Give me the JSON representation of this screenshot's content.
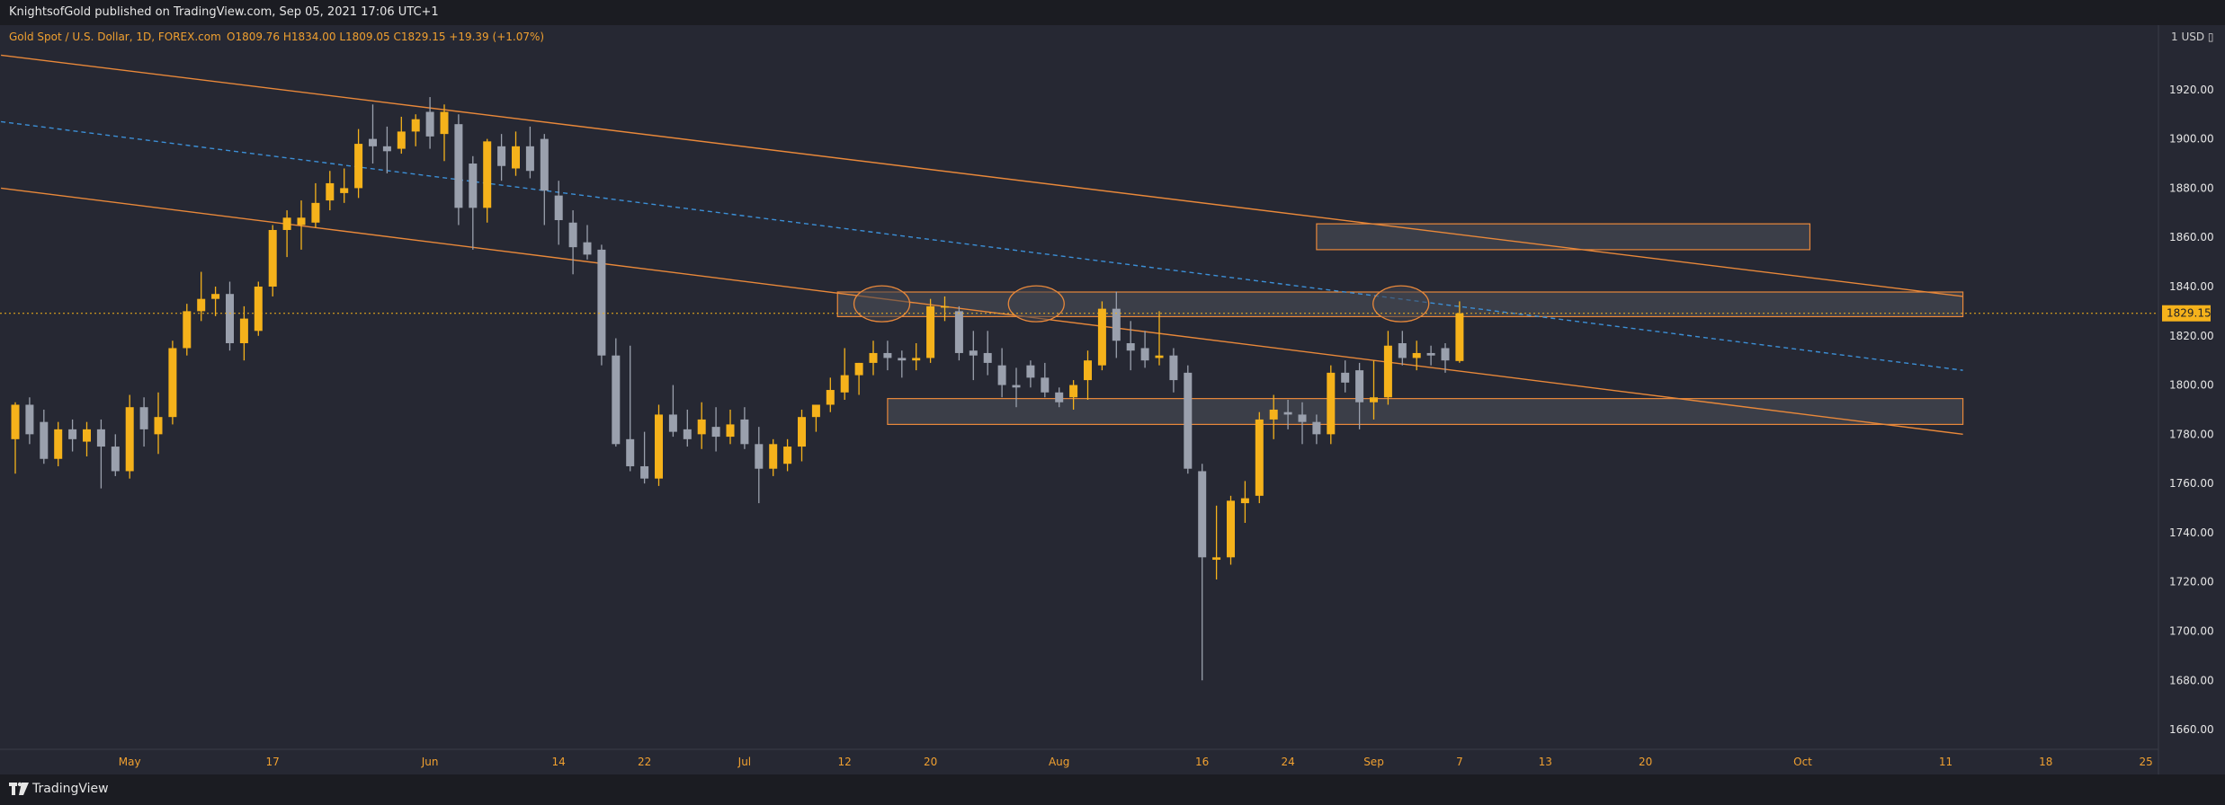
{
  "header": {
    "published_line": "KnightsofGold published on TradingView.com, Sep 05, 2021 17:06 UTC+1"
  },
  "footer": {
    "brand": "TradingView"
  },
  "colors": {
    "background": "#262833",
    "up_candle": "#f5b21b",
    "down_candle": "#9aa0ad",
    "channel_line": "#e8883a",
    "midline": "#3c8fd6",
    "zone_fill": "#3f424c",
    "zone_border": "#e8883a",
    "axis_text": "#f0a030"
  },
  "chart_data": {
    "type": "candlestick",
    "symbol_legend": "Gold Spot / U.S. Dollar, 1D, FOREX.com",
    "ohlc_legend": "O1809.76 H1834.00 L1809.05 C1829.15 +19.39 (+1.07%)",
    "currency_label": "1 USD ▯",
    "last_price_label": "1829.15",
    "last_price": 1829.15,
    "ylim": [
      1652,
      1936
    ],
    "y_ticks": [
      1660,
      1680,
      1700,
      1720,
      1740,
      1760,
      1780,
      1800,
      1820,
      1840,
      1860,
      1880,
      1900,
      1920
    ],
    "y_tick_labels": [
      "1660.00",
      "1680.00",
      "1700.00",
      "1720.00",
      "1740.00",
      "1760.00",
      "1780.00",
      "1800.00",
      "1820.00",
      "1840.00",
      "1860.00",
      "1880.00",
      "1900.00",
      "1920.00"
    ],
    "x_ticks": [
      {
        "label": "May",
        "bar": 8
      },
      {
        "label": "17",
        "bar": 18
      },
      {
        "label": "Jun",
        "bar": 29
      },
      {
        "label": "14",
        "bar": 38
      },
      {
        "label": "22",
        "bar": 44
      },
      {
        "label": "Jul",
        "bar": 51
      },
      {
        "label": "12",
        "bar": 58
      },
      {
        "label": "20",
        "bar": 64
      },
      {
        "label": "Aug",
        "bar": 73
      },
      {
        "label": "16",
        "bar": 83
      },
      {
        "label": "24",
        "bar": 89
      },
      {
        "label": "Sep",
        "bar": 95
      },
      {
        "label": "7",
        "bar": 101
      },
      {
        "label": "13",
        "bar": 107
      },
      {
        "label": "20",
        "bar": 114
      },
      {
        "label": "Oct",
        "bar": 125
      },
      {
        "label": "11",
        "bar": 135
      },
      {
        "label": "18",
        "bar": 142
      },
      {
        "label": "25",
        "bar": 149
      }
    ],
    "candles": [
      [
        1778,
        1793,
        1764,
        1792
      ],
      [
        1792,
        1795,
        1776,
        1780
      ],
      [
        1785,
        1790,
        1768,
        1770
      ],
      [
        1770,
        1785,
        1767,
        1782
      ],
      [
        1782,
        1786,
        1773,
        1778
      ],
      [
        1777,
        1785,
        1771,
        1782
      ],
      [
        1782,
        1786,
        1758,
        1775
      ],
      [
        1775,
        1780,
        1763,
        1765
      ],
      [
        1765,
        1796,
        1762,
        1791
      ],
      [
        1791,
        1795,
        1775,
        1782
      ],
      [
        1780,
        1797,
        1772,
        1787
      ],
      [
        1787,
        1818,
        1784,
        1815
      ],
      [
        1815,
        1833,
        1812,
        1830
      ],
      [
        1830,
        1846,
        1826,
        1835
      ],
      [
        1835,
        1840,
        1828,
        1837
      ],
      [
        1837,
        1842,
        1814,
        1817
      ],
      [
        1817,
        1832,
        1810,
        1827
      ],
      [
        1822,
        1842,
        1820,
        1840
      ],
      [
        1840,
        1865,
        1836,
        1863
      ],
      [
        1863,
        1871,
        1852,
        1868
      ],
      [
        1865,
        1875,
        1855,
        1868
      ],
      [
        1866,
        1882,
        1864,
        1874
      ],
      [
        1875,
        1887,
        1871,
        1882
      ],
      [
        1878,
        1888,
        1874,
        1880
      ],
      [
        1880,
        1904,
        1876,
        1898
      ],
      [
        1900,
        1914,
        1890,
        1897
      ],
      [
        1897,
        1905,
        1886,
        1895
      ],
      [
        1896,
        1909,
        1894,
        1903
      ],
      [
        1903,
        1910,
        1897,
        1908
      ],
      [
        1911,
        1917,
        1896,
        1901
      ],
      [
        1902,
        1914,
        1891,
        1911
      ],
      [
        1906,
        1910,
        1865,
        1872
      ],
      [
        1890,
        1893,
        1855,
        1872
      ],
      [
        1872,
        1900,
        1866,
        1899
      ],
      [
        1897,
        1902,
        1883,
        1889
      ],
      [
        1888,
        1903,
        1885,
        1897
      ],
      [
        1897,
        1905,
        1884,
        1887
      ],
      [
        1900,
        1902,
        1865,
        1879
      ],
      [
        1877,
        1883,
        1857,
        1867
      ],
      [
        1866,
        1871,
        1845,
        1856
      ],
      [
        1858,
        1865,
        1851,
        1853
      ],
      [
        1855,
        1857,
        1808,
        1812
      ],
      [
        1812,
        1819,
        1775,
        1776
      ],
      [
        1778,
        1816,
        1765,
        1767
      ],
      [
        1767,
        1781,
        1760,
        1762
      ],
      [
        1762,
        1792,
        1759,
        1788
      ],
      [
        1788,
        1800,
        1779,
        1781
      ],
      [
        1782,
        1790,
        1775,
        1778
      ],
      [
        1780,
        1793,
        1774,
        1786
      ],
      [
        1783,
        1791,
        1773,
        1779
      ],
      [
        1779,
        1790,
        1776,
        1784
      ],
      [
        1786,
        1791,
        1774,
        1776
      ],
      [
        1776,
        1783,
        1752,
        1766
      ],
      [
        1766,
        1778,
        1763,
        1776
      ],
      [
        1768,
        1778,
        1765,
        1775
      ],
      [
        1775,
        1790,
        1769,
        1787
      ],
      [
        1787,
        1792,
        1781,
        1792
      ],
      [
        1792,
        1803,
        1789,
        1798
      ],
      [
        1797,
        1815,
        1794,
        1804
      ],
      [
        1804,
        1809,
        1796,
        1809
      ],
      [
        1809,
        1818,
        1804,
        1813
      ],
      [
        1813,
        1818,
        1806,
        1811
      ],
      [
        1811,
        1814,
        1803,
        1810
      ],
      [
        1810,
        1817,
        1806,
        1811
      ],
      [
        1811,
        1835,
        1809,
        1832
      ],
      [
        1832,
        1836,
        1826,
        1832
      ],
      [
        1830,
        1832,
        1810,
        1813
      ],
      [
        1814,
        1822,
        1802,
        1812
      ],
      [
        1813,
        1822,
        1804,
        1809
      ],
      [
        1808,
        1815,
        1795,
        1800
      ],
      [
        1800,
        1807,
        1791,
        1799
      ],
      [
        1808,
        1810,
        1799,
        1803
      ],
      [
        1803,
        1809,
        1795,
        1797
      ],
      [
        1797,
        1799,
        1791,
        1793
      ],
      [
        1795,
        1802,
        1790,
        1800
      ],
      [
        1802,
        1814,
        1794,
        1810
      ],
      [
        1808,
        1834,
        1806,
        1831
      ],
      [
        1831,
        1838,
        1811,
        1818
      ],
      [
        1817,
        1826,
        1806,
        1814
      ],
      [
        1815,
        1822,
        1807,
        1810
      ],
      [
        1811,
        1830,
        1808,
        1812
      ],
      [
        1812,
        1815,
        1797,
        1802
      ],
      [
        1805,
        1808,
        1764,
        1766
      ],
      [
        1765,
        1768,
        1680,
        1730
      ],
      [
        1729,
        1751,
        1721,
        1730
      ],
      [
        1730,
        1755,
        1727,
        1753
      ],
      [
        1752,
        1761,
        1744,
        1754
      ],
      [
        1755,
        1789,
        1752,
        1786
      ],
      [
        1786,
        1796,
        1778,
        1790
      ],
      [
        1789,
        1794,
        1782,
        1788
      ],
      [
        1788,
        1793,
        1776,
        1785
      ],
      [
        1785,
        1788,
        1776,
        1780
      ],
      [
        1780,
        1808,
        1776,
        1805
      ],
      [
        1805,
        1810,
        1797,
        1801
      ],
      [
        1806,
        1809,
        1782,
        1793
      ],
      [
        1793,
        1810,
        1786,
        1795
      ],
      [
        1795,
        1822,
        1792,
        1816
      ],
      [
        1817,
        1822,
        1808,
        1811
      ],
      [
        1811,
        1818,
        1806,
        1813
      ],
      [
        1813,
        1816,
        1808,
        1812
      ],
      [
        1815,
        1817,
        1805,
        1810
      ],
      [
        1809.76,
        1834.0,
        1809.05,
        1829.15
      ]
    ]
  }
}
